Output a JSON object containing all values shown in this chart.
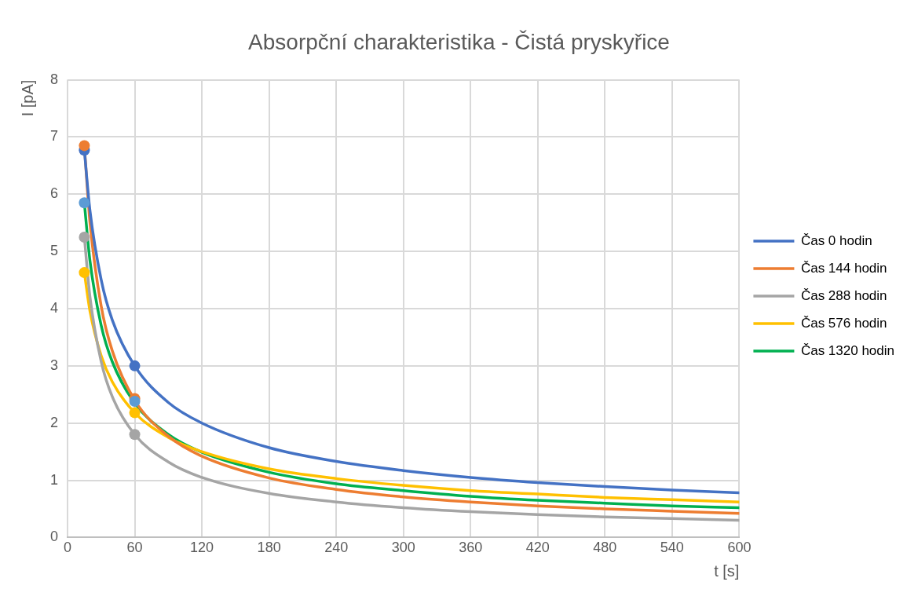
{
  "chart_data": {
    "type": "line",
    "title": "Absorpční charakteristika - Čistá pryskyřice",
    "xlabel": "t [s]",
    "ylabel": "I [pA]",
    "xlim": [
      0,
      600
    ],
    "xticks": [
      0,
      60,
      120,
      180,
      240,
      300,
      360,
      420,
      480,
      540,
      600
    ],
    "ylim": [
      0,
      8
    ],
    "yticks": [
      0,
      1,
      2,
      3,
      4,
      5,
      6,
      7,
      8
    ],
    "grid": true,
    "legend": "right",
    "marker": "none",
    "line_style": "solid",
    "series": [
      {
        "name": "Čas 0 hodin",
        "color": "#4472c4",
        "x": [
          15,
          20,
          30,
          40,
          60,
          90,
          120,
          180,
          240,
          300,
          360,
          420,
          480,
          540,
          600
        ],
        "values": [
          6.77,
          5.72,
          4.51,
          3.8,
          3.0,
          2.36,
          2.0,
          1.57,
          1.33,
          1.17,
          1.05,
          0.96,
          0.89,
          0.83,
          0.78
        ]
      },
      {
        "name": "Čas 144 hodin",
        "color": "#ed7d31",
        "x": [
          15,
          20,
          30,
          40,
          60,
          90,
          120,
          180,
          240,
          300,
          360,
          420,
          480,
          540,
          600
        ],
        "values": [
          6.85,
          5.51,
          4.05,
          3.26,
          2.4,
          1.77,
          1.42,
          1.04,
          0.84,
          0.71,
          0.62,
          0.55,
          0.5,
          0.46,
          0.42
        ]
      },
      {
        "name": "Čas 288 hodin",
        "color": "#a5a5a5",
        "x": [
          15,
          20,
          30,
          40,
          60,
          90,
          120,
          180,
          240,
          300,
          360,
          420,
          480,
          540,
          600
        ],
        "values": [
          5.25,
          4.21,
          3.08,
          2.46,
          1.8,
          1.32,
          1.05,
          0.77,
          0.62,
          0.52,
          0.45,
          0.4,
          0.36,
          0.33,
          0.3
        ]
      },
      {
        "name": "Čas 576 hodin",
        "color": "#ffc000",
        "x": [
          15,
          20,
          30,
          40,
          60,
          90,
          120,
          180,
          240,
          300,
          360,
          420,
          480,
          540,
          600
        ],
        "values": [
          4.63,
          3.96,
          3.18,
          2.72,
          2.18,
          1.75,
          1.5,
          1.2,
          1.03,
          0.91,
          0.82,
          0.76,
          0.7,
          0.66,
          0.62
        ]
      },
      {
        "name": "Čas 1320 hodin",
        "color": "#00b050",
        "x": [
          15,
          20,
          30,
          40,
          60,
          90,
          120,
          180,
          240,
          300,
          360,
          420,
          480,
          540,
          600
        ],
        "values": [
          5.85,
          4.84,
          3.71,
          3.07,
          2.35,
          1.8,
          1.49,
          1.14,
          0.94,
          0.82,
          0.72,
          0.65,
          0.6,
          0.55,
          0.52
        ]
      },
      {
        "type": "scatter",
        "marker": "circle",
        "color": "#4472c4",
        "x": [
          15,
          60
        ],
        "values": [
          6.77,
          3.0
        ]
      },
      {
        "type": "scatter",
        "marker": "circle",
        "color": "#ed7d31",
        "x": [
          15,
          60
        ],
        "values": [
          6.85,
          2.43
        ]
      },
      {
        "type": "scatter",
        "marker": "circle",
        "color": "#a5a5a5",
        "x": [
          15,
          60
        ],
        "values": [
          5.25,
          1.8
        ]
      },
      {
        "type": "scatter",
        "marker": "circle",
        "color": "#ffc000",
        "x": [
          15,
          60
        ],
        "values": [
          4.63,
          2.18
        ]
      },
      {
        "type": "scatter",
        "marker": "circle",
        "color": "#5b9bd5",
        "x": [
          15,
          60
        ],
        "values": [
          5.85,
          2.38
        ]
      }
    ]
  }
}
